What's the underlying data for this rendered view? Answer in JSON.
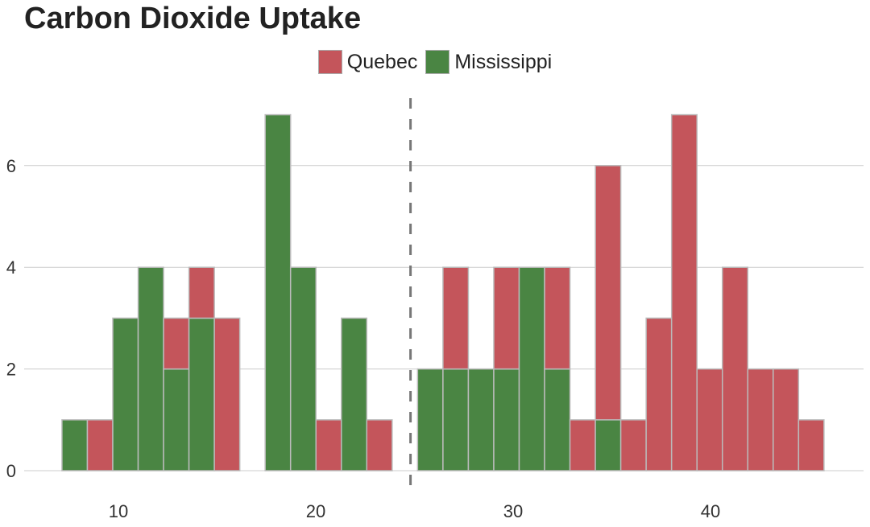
{
  "chart_data": {
    "type": "bar",
    "subtype": "stacked-histogram",
    "title": "Carbon Dioxide Uptake",
    "xlabel": "",
    "ylabel": "",
    "legend_position": "top",
    "grid": "horizontal",
    "xlim": [
      6,
      48
    ],
    "ylim": [
      0,
      7.5
    ],
    "xticks": [
      10,
      20,
      30,
      40
    ],
    "yticks": [
      0,
      2,
      4,
      6
    ],
    "bin_start": 7.14,
    "bin_width": 1.287,
    "reference_line": {
      "x": 24.8,
      "style": "dashed",
      "color": "#777777"
    },
    "series": [
      {
        "name": "Mississippi",
        "color": "#4a8543",
        "values": [
          1,
          0,
          3,
          4,
          2,
          3,
          0,
          0,
          7,
          4,
          0,
          3,
          0,
          0,
          2,
          2,
          2,
          2,
          4,
          2,
          0,
          1,
          0,
          0,
          0,
          0,
          0,
          0,
          0,
          0
        ]
      },
      {
        "name": "Quebec",
        "color": "#c4555b",
        "values": [
          0,
          1,
          0,
          0,
          1,
          1,
          3,
          0,
          0,
          0,
          1,
          0,
          1,
          0,
          0,
          2,
          0,
          2,
          0,
          2,
          1,
          5,
          1,
          3,
          7,
          2,
          4,
          2,
          2,
          1
        ]
      }
    ]
  }
}
